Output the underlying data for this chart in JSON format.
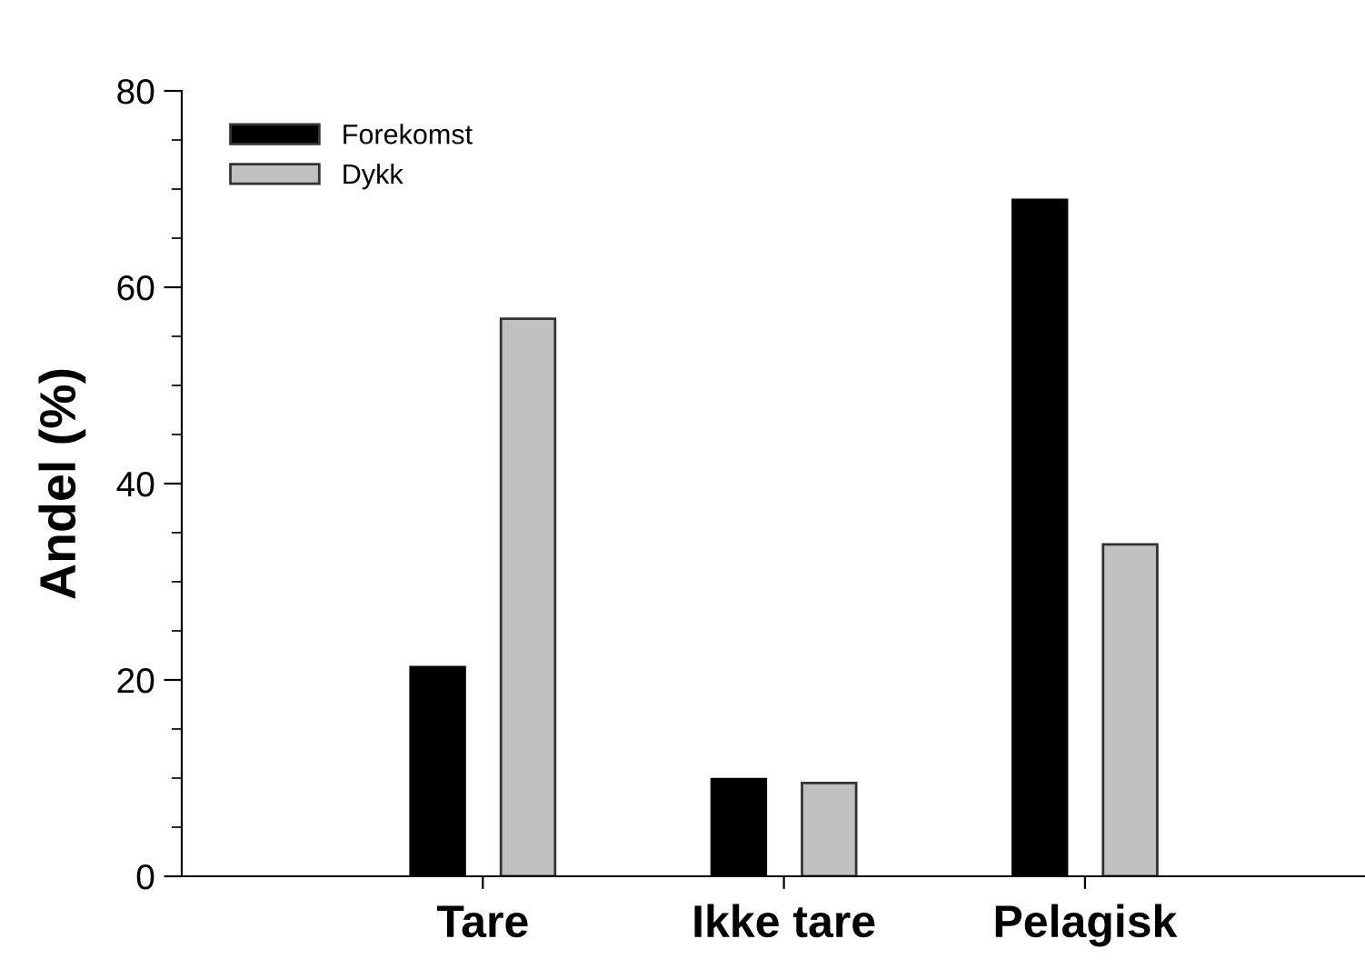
{
  "chart_data": {
    "type": "bar",
    "ylabel": "Andel (%)",
    "categories": [
      "Tare",
      "Ikke tare",
      "Pelagisk"
    ],
    "series": [
      {
        "name": "Forekomst",
        "color": "#000000",
        "values": [
          21.3,
          9.9,
          68.9
        ]
      },
      {
        "name": "Dykk",
        "color": "#c0c0c0",
        "values": [
          56.8,
          9.5,
          33.8
        ]
      }
    ],
    "ylim": [
      0,
      80
    ],
    "yticks": [
      0,
      20,
      40,
      60,
      80
    ],
    "grid": false,
    "legend": "top left"
  }
}
